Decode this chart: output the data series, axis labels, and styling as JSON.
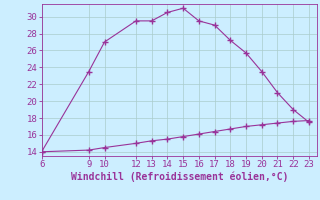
{
  "xlabel": "Windchill (Refroidissement éolien,°C)",
  "bg_color": "#cceeff",
  "line_color": "#993399",
  "grid_color": "#aacccc",
  "curve1_x": [
    6,
    9,
    10,
    12,
    13,
    14,
    15,
    16,
    17,
    18,
    19,
    20,
    21,
    22,
    23
  ],
  "curve1_y": [
    14,
    23.5,
    27,
    29.5,
    29.5,
    30.5,
    31,
    29.5,
    29,
    27.2,
    25.7,
    23.5,
    21,
    19,
    17.5
  ],
  "curve2_x": [
    6,
    9,
    10,
    12,
    13,
    14,
    15,
    16,
    17,
    18,
    19,
    20,
    21,
    22,
    23
  ],
  "curve2_y": [
    14,
    14.2,
    14.5,
    15.0,
    15.3,
    15.5,
    15.8,
    16.1,
    16.4,
    16.7,
    17.0,
    17.2,
    17.4,
    17.6,
    17.7
  ],
  "xlim": [
    6,
    23.5
  ],
  "ylim": [
    13.5,
    31.5
  ],
  "xticks": [
    6,
    9,
    10,
    12,
    13,
    14,
    15,
    16,
    17,
    18,
    19,
    20,
    21,
    22,
    23
  ],
  "yticks": [
    14,
    16,
    18,
    20,
    22,
    24,
    26,
    28,
    30
  ],
  "tick_fontsize": 6.5,
  "xlabel_fontsize": 7.0
}
